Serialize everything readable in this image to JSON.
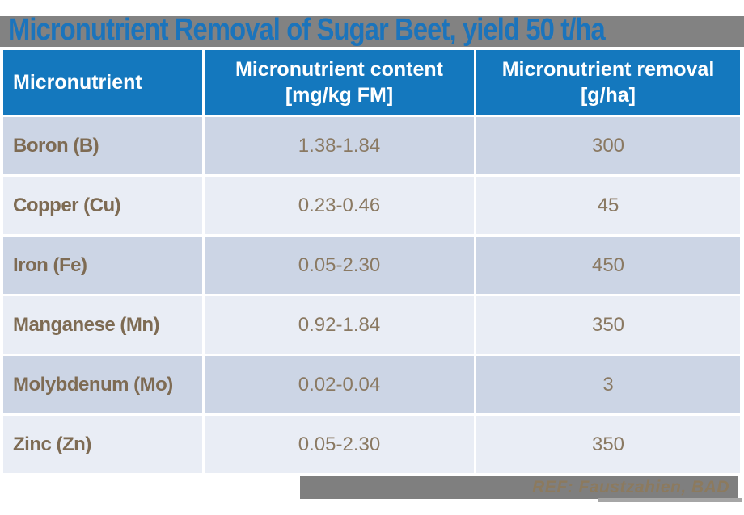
{
  "slide": {
    "title": "Micronutrient Removal of Sugar Beet, yield 50 t/ha",
    "reference": "REF: Faustzahien, BAD"
  },
  "table": {
    "headers": {
      "micronutrient": "Micronutrient",
      "content_line1": "Micronutrient content",
      "content_line2": "[mg/kg FM]",
      "removal_line1": "Micronutrient removal",
      "removal_line2": "[g/ha]"
    },
    "rows": [
      {
        "micronutrient": "Boron (B)",
        "content": "1.38-1.84",
        "removal": "300"
      },
      {
        "micronutrient": "Copper (Cu)",
        "content": "0.23-0.46",
        "removal": "45"
      },
      {
        "micronutrient": "Iron (Fe)",
        "content": "0.05-2.30",
        "removal": "450"
      },
      {
        "micronutrient": "Manganese (Mn)",
        "content": "0.92-1.84",
        "removal": "350"
      },
      {
        "micronutrient": "Molybdenum (Mo)",
        "content": "0.02-0.04",
        "removal": "3"
      },
      {
        "micronutrient": "Zinc (Zn)",
        "content": "0.05-2.30",
        "removal": "350"
      }
    ]
  },
  "colors": {
    "title_blue": "#1B74BC",
    "header_blue": "#1478BE",
    "bar_gray": "#828282",
    "row_dark": "#CCD5E5",
    "row_light": "#E9EDF5",
    "label_brown": "#7E6B53",
    "value_brown": "#8A7962",
    "ref_brown": "#8C7A5E"
  }
}
